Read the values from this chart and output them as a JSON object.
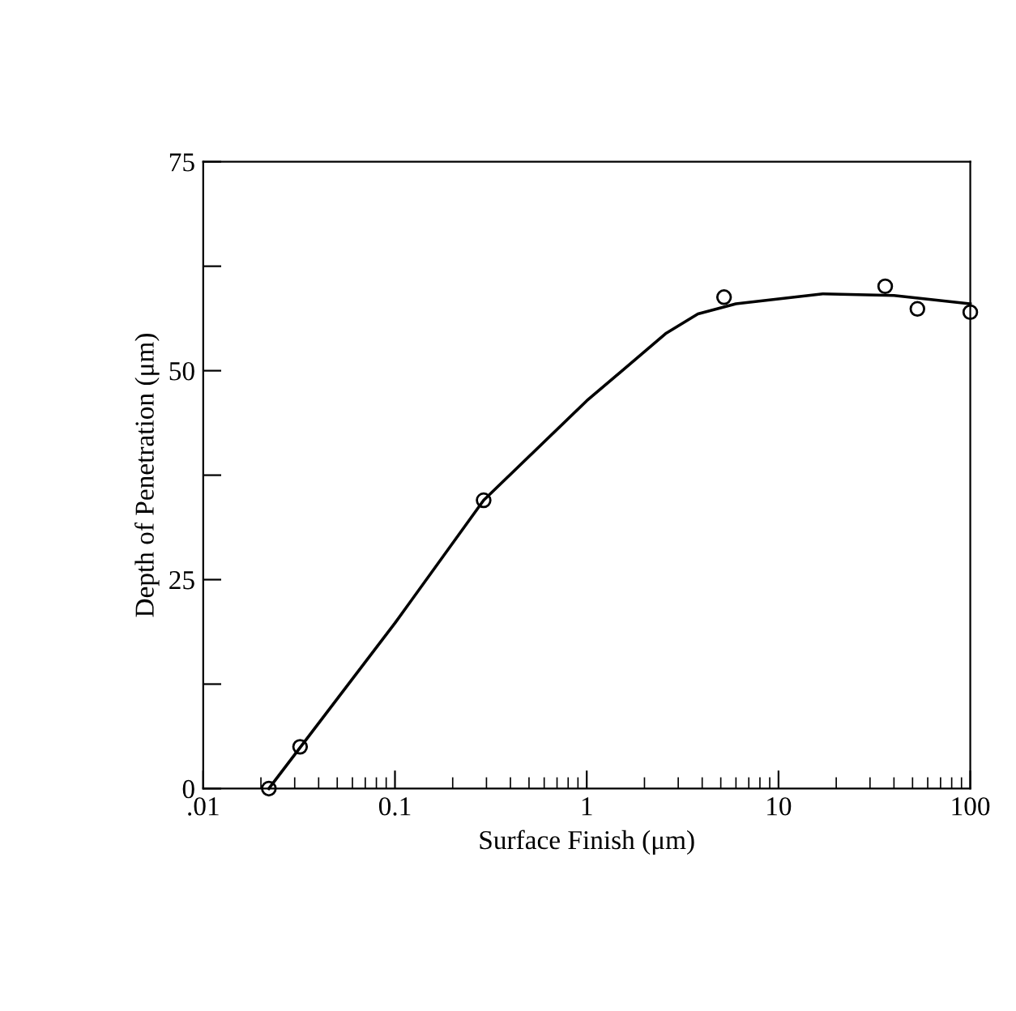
{
  "chart_data": {
    "type": "scatter",
    "xlabel": "Surface Finish (μm)",
    "ylabel": "Depth of Penetration (μm)",
    "log": "x",
    "xlim": [
      0.01,
      100
    ],
    "xticks": [
      {
        "value": 0.01,
        "label": ".01"
      },
      0.1,
      1,
      10,
      100
    ],
    "ylim": [
      0,
      75
    ],
    "yticks": [
      0,
      {
        "value": 12.5,
        "label": null
      },
      25,
      {
        "value": 37.5,
        "label": null
      },
      50,
      {
        "value": 62.5,
        "label": null
      },
      75
    ],
    "grid": false,
    "series": [
      {
        "color": "#000000",
        "marker": "circle",
        "x": [
          0.022,
          0.032,
          0.29,
          5.2,
          36,
          53,
          100
        ],
        "values": [
          0,
          5,
          34.5,
          58.8,
          60.1,
          57.4,
          57
        ]
      },
      {
        "type": "line",
        "color": "#000000",
        "marker": "none",
        "line_style": "solid",
        "x": [
          0.022,
          0.1,
          0.29,
          1,
          2.6,
          3.8,
          6,
          17,
          40,
          100
        ],
        "values": [
          0,
          19.8,
          34.5,
          46.4,
          54.5,
          56.8,
          58,
          59.2,
          59,
          58
        ]
      }
    ]
  }
}
